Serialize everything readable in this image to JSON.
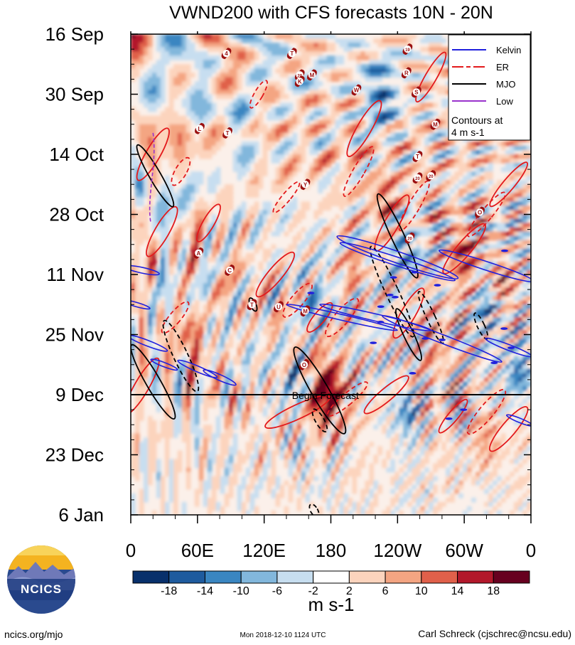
{
  "chart_data": {
    "type": "heatmap",
    "title": "VWND200 with CFS forecasts  10N - 20N",
    "variable": "VWND200",
    "latitude_band": "10N - 20N",
    "xlabel": "",
    "ylabel": "",
    "x_ticks": [
      {
        "lon": 0,
        "label": "0"
      },
      {
        "lon": 60,
        "label": "60E"
      },
      {
        "lon": 120,
        "label": "120E"
      },
      {
        "lon": 180,
        "label": "180"
      },
      {
        "lon": 240,
        "label": "120W"
      },
      {
        "lon": 300,
        "label": "60W"
      },
      {
        "lon": 360,
        "label": "0"
      }
    ],
    "xlim": [
      0,
      360
    ],
    "y_ticks": [
      {
        "day": 0,
        "label": "16 Sep"
      },
      {
        "day": 14,
        "label": "30 Sep"
      },
      {
        "day": 28,
        "label": "14 Oct"
      },
      {
        "day": 42,
        "label": "28 Oct"
      },
      {
        "day": 56,
        "label": "11 Nov"
      },
      {
        "day": 70,
        "label": "25 Nov"
      },
      {
        "day": 84,
        "label": "9 Dec"
      },
      {
        "day": 98,
        "label": "23 Dec"
      },
      {
        "day": 112,
        "label": "6 Jan"
      }
    ],
    "ylim_days": [
      0,
      112
    ],
    "begin_forecast_day": 84,
    "begin_forecast_label": "Begin Forecast",
    "colorbar": {
      "levels": [
        -18,
        -14,
        -10,
        -6,
        -2,
        2,
        6,
        10,
        14,
        18
      ],
      "tick_labels": [
        "-18",
        "-14",
        "-10",
        "-6",
        "-2",
        "2",
        "6",
        "10",
        "14",
        "18"
      ],
      "colors": [
        "#08306b",
        "#1e5b9e",
        "#3a86c1",
        "#82b7dc",
        "#c7def0",
        "#ffffff",
        "#fcd4bd",
        "#f4a582",
        "#e0604a",
        "#b2182b",
        "#67001f"
      ],
      "units": "m s-1"
    },
    "legend": {
      "position": "top-right",
      "entries": [
        {
          "name": "Kelvin",
          "color": "#2020dd",
          "style": "solid"
        },
        {
          "name": "ER",
          "color": "#e31a1c",
          "style": "dashed"
        },
        {
          "name": "MJO",
          "color": "#000000",
          "style": "solid"
        },
        {
          "name": "Low",
          "color": "#9932cc",
          "style": "solid"
        }
      ],
      "note": [
        "Contours at",
        "4 m s-1"
      ],
      "contour_interval": 4
    },
    "tropical_cyclones": [
      {
        "label": "4",
        "lon": 86,
        "day": 4.5
      },
      {
        "label": "T",
        "lon": 145,
        "day": 4.5
      },
      {
        "label": "19",
        "lon": 249,
        "day": 3.5
      },
      {
        "label": "R",
        "lon": 248,
        "day": 9
      },
      {
        "label": "20",
        "lon": 152,
        "day": 9.5
      },
      {
        "label": "K",
        "lon": 152,
        "day": 11
      },
      {
        "label": "M",
        "lon": 163,
        "day": 9.5
      },
      {
        "label": "W",
        "lon": 203,
        "day": 13
      },
      {
        "label": "S",
        "lon": 257,
        "day": 13.5
      },
      {
        "label": "L",
        "lon": 62,
        "day": 22
      },
      {
        "label": "T",
        "lon": 87,
        "day": 23
      },
      {
        "label": "M",
        "lon": 274,
        "day": 21
      },
      {
        "label": "T",
        "lon": 258,
        "day": 28.5
      },
      {
        "label": "20",
        "lon": 258,
        "day": 33.5
      },
      {
        "label": "20",
        "lon": 270,
        "day": 33
      },
      {
        "label": "Y",
        "lon": 157,
        "day": 35
      },
      {
        "label": "O",
        "lon": 314,
        "day": 41.5
      },
      {
        "label": "20",
        "lon": 251,
        "day": 47.5
      },
      {
        "label": "A",
        "lon": 61,
        "day": 51
      },
      {
        "label": "C",
        "lon": 89,
        "day": 55
      },
      {
        "label": "T",
        "lon": 109,
        "day": 63
      },
      {
        "label": "U",
        "lon": 133,
        "day": 63.5
      },
      {
        "label": "M",
        "lon": 157,
        "day": 64.5
      },
      {
        "label": "O",
        "lon": 156,
        "day": 77
      }
    ],
    "series_overlays": [
      {
        "name": "Kelvin",
        "description": "eastward-propagating blue contours, mostly November-December"
      },
      {
        "name": "ER",
        "description": "westward-propagating red contours throughout"
      },
      {
        "name": "MJO",
        "description": "black contours near 0-30E and 180-240"
      },
      {
        "name": "Low",
        "description": "purple contour near 15-20E, early October"
      }
    ]
  },
  "logo": {
    "text": "NCICS"
  },
  "footer": {
    "left": "ncics.org/mjo",
    "center": "Mon 2018-12-10 1124 UTC",
    "right": "Carl Schreck (cjschrec@ncsu.edu)"
  }
}
